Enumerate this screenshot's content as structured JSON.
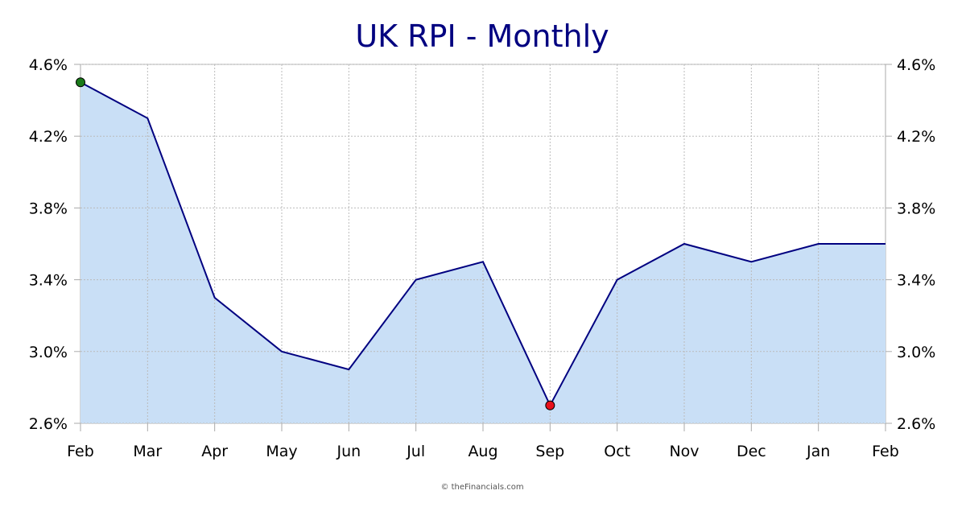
{
  "chart_data": {
    "type": "area",
    "title": "UK RPI - Monthly",
    "xlabel": "",
    "ylabel": "",
    "categories": [
      "Feb",
      "Mar",
      "Apr",
      "May",
      "Jun",
      "Jul",
      "Aug",
      "Sep",
      "Oct",
      "Nov",
      "Dec",
      "Jan",
      "Feb"
    ],
    "series": [
      {
        "name": "UK RPI",
        "values": [
          4.5,
          4.3,
          3.3,
          3.0,
          2.9,
          3.4,
          3.5,
          2.7,
          3.4,
          3.6,
          3.5,
          3.6,
          3.6
        ]
      }
    ],
    "ylim": [
      2.6,
      4.6
    ],
    "yticks": [
      2.6,
      3.0,
      3.4,
      3.8,
      4.2,
      4.6
    ],
    "ytick_labels": [
      "2.6%",
      "3.0%",
      "3.4%",
      "3.8%",
      "4.2%",
      "4.6%"
    ],
    "grid": true,
    "highlights": {
      "max_index": 0,
      "min_index": 7
    },
    "colors": {
      "title": "#000080",
      "line": "#000080",
      "fill": "#c9dff6",
      "max_marker": "#1a7a1a",
      "min_marker": "#e8101a",
      "grid": "#bbbbbb",
      "axis": "#aaaaaa"
    }
  },
  "footer": {
    "credit": "© theFinancials.com"
  }
}
